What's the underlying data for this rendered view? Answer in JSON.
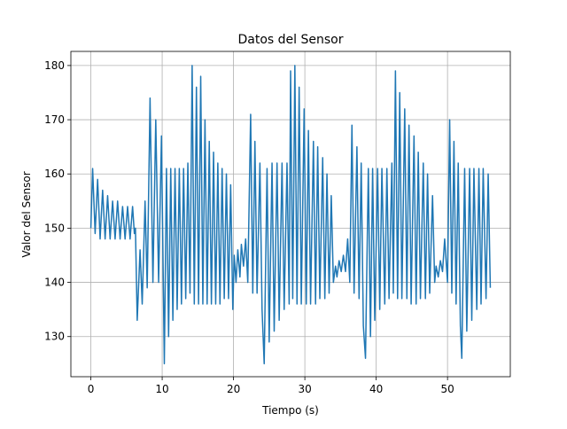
{
  "chart_data": {
    "type": "line",
    "title": "Datos del Sensor",
    "xlabel": "Tiempo (s)",
    "ylabel": "Valor del Sensor",
    "x": [
      0,
      0.25,
      0.6,
      0.95,
      1.3,
      1.65,
      2.0,
      2.35,
      2.7,
      3.05,
      3.4,
      3.75,
      4.1,
      4.45,
      4.8,
      5.15,
      5.5,
      5.85,
      6.1,
      6.25,
      6.5,
      6.9,
      7.2,
      7.6,
      7.9,
      8.3,
      8.7,
      9.1,
      9.5,
      9.9,
      10.3,
      10.6,
      10.9,
      11.2,
      11.5,
      11.8,
      12.1,
      12.4,
      12.7,
      13.0,
      13.3,
      13.6,
      13.9,
      14.2,
      14.5,
      14.8,
      15.1,
      15.4,
      15.7,
      16.0,
      16.3,
      16.6,
      16.9,
      17.2,
      17.5,
      17.8,
      18.1,
      18.4,
      18.7,
      19.0,
      19.3,
      19.6,
      19.9,
      20.1,
      20.35,
      20.6,
      20.9,
      21.1,
      21.4,
      21.7,
      22.0,
      22.4,
      22.7,
      23.0,
      23.3,
      23.7,
      24.0,
      24.3,
      24.7,
      25.0,
      25.4,
      25.7,
      26.1,
      26.4,
      26.8,
      27.1,
      27.5,
      27.8,
      28.0,
      28.3,
      28.6,
      28.9,
      29.2,
      29.5,
      29.9,
      30.2,
      30.5,
      30.8,
      31.2,
      31.5,
      31.8,
      32.1,
      32.5,
      32.8,
      33.1,
      33.4,
      33.7,
      34.0,
      34.3,
      34.5,
      34.8,
      35.1,
      35.4,
      35.7,
      36.0,
      36.3,
      36.6,
      36.9,
      37.3,
      37.6,
      37.9,
      38.2,
      38.5,
      38.9,
      39.2,
      39.5,
      39.8,
      40.2,
      40.5,
      40.8,
      41.2,
      41.5,
      41.8,
      42.2,
      42.4,
      42.7,
      43.0,
      43.3,
      43.6,
      44.0,
      44.3,
      44.6,
      44.9,
      45.3,
      45.6,
      45.9,
      46.2,
      46.6,
      46.9,
      47.2,
      47.5,
      47.9,
      48.2,
      48.4,
      48.7,
      49.0,
      49.3,
      49.6,
      50.0,
      50.3,
      50.6,
      50.9,
      51.2,
      51.5,
      51.8,
      52.0,
      52.4,
      52.7,
      53.1,
      53.4,
      53.7,
      54.1,
      54.4,
      54.7,
      55.0,
      55.4,
      55.7,
      56.0
    ],
    "series": [
      {
        "name": "Valor",
        "color": "#1f77b4",
        "values": [
          150,
          161,
          149,
          159,
          148,
          157,
          148,
          156,
          148,
          155,
          148,
          155,
          148,
          154,
          148,
          154,
          148,
          154,
          149,
          150,
          133,
          146,
          136,
          155,
          139,
          174,
          140,
          170,
          140,
          167,
          125,
          161,
          130,
          161,
          133,
          161,
          135,
          161,
          136,
          161,
          137,
          162,
          138,
          180,
          136,
          176,
          136,
          178,
          136,
          170,
          136,
          166,
          136,
          164,
          136,
          162,
          136,
          161,
          137,
          160,
          137,
          158,
          135,
          145,
          140,
          146,
          141,
          147,
          143,
          148,
          140,
          171,
          138,
          166,
          138,
          162,
          135,
          125,
          161,
          129,
          162,
          131,
          162,
          133,
          162,
          135,
          162,
          136,
          179,
          137,
          180,
          136,
          176,
          136,
          172,
          136,
          168,
          136,
          166,
          136,
          165,
          137,
          163,
          137,
          160,
          138,
          156,
          140,
          143,
          141,
          144,
          142,
          145,
          142,
          148,
          140,
          169,
          138,
          165,
          137,
          162,
          132,
          126,
          161,
          130,
          161,
          133,
          161,
          135,
          161,
          136,
          161,
          137,
          162,
          138,
          179,
          137,
          175,
          137,
          172,
          137,
          169,
          136,
          167,
          136,
          164,
          137,
          162,
          137,
          160,
          138,
          156,
          140,
          143,
          141,
          144,
          142,
          148,
          140,
          170,
          138,
          166,
          136,
          162,
          132,
          126,
          161,
          131,
          161,
          133,
          161,
          135,
          161,
          136,
          161,
          137,
          160,
          139
        ]
      }
    ],
    "xlim": [
      -2.8,
      58.8
    ],
    "ylim": [
      122.6,
      182.6
    ],
    "xticks": [
      0,
      10,
      20,
      30,
      40,
      50
    ],
    "yticks": [
      130,
      140,
      150,
      160,
      170,
      180
    ],
    "grid": true
  }
}
